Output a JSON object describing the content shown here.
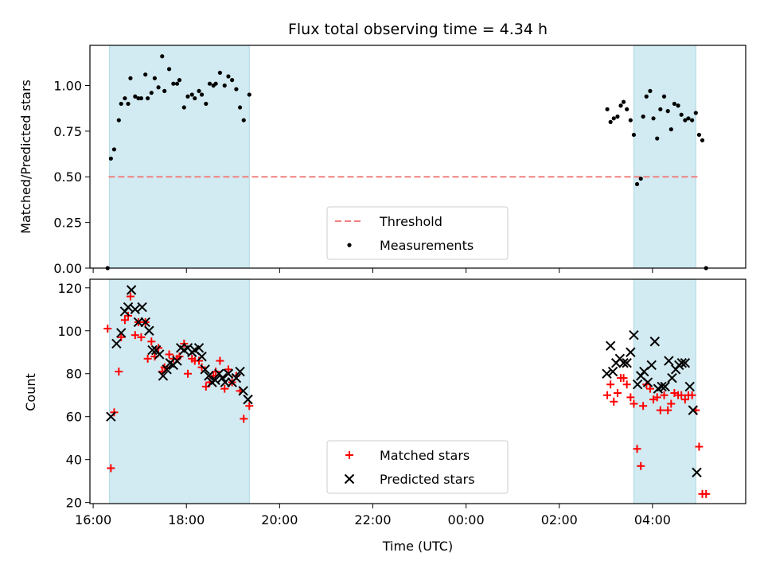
{
  "chart_data": {
    "type": "scatter",
    "title": "Flux total observing time = 4.34 h",
    "xlabel": "Time (UTC)",
    "x_ticks": [
      "16:00",
      "18:00",
      "20:00",
      "22:00",
      "00:00",
      "02:00",
      "04:00"
    ],
    "x_range_hours": [
      15.93,
      30.0
    ],
    "shaded_intervals_hours": [
      [
        16.35,
        19.35
      ],
      [
        27.6,
        28.93
      ]
    ],
    "shade_color": "#add8e6",
    "panels": [
      {
        "ylabel": "Matched/Predicted stars",
        "ylim": [
          0,
          1.22
        ],
        "y_ticks": [
          "0.00",
          "0.25",
          "0.50",
          "0.75",
          "1.00"
        ],
        "y_tick_values": [
          0,
          0.25,
          0.5,
          0.75,
          1.0
        ],
        "threshold": {
          "name": "Threshold",
          "value": 0.5,
          "x_range": [
            16.33,
            29.0
          ],
          "color": "#f08080"
        },
        "legend": [
          "Threshold",
          "Measurements"
        ],
        "series": [
          {
            "name": "Measurements",
            "marker": "dot",
            "color": "#000000",
            "points": [
              [
                16.31,
                0.0
              ],
              [
                16.38,
                0.6
              ],
              [
                16.45,
                0.65
              ],
              [
                16.55,
                0.81
              ],
              [
                16.6,
                0.9
              ],
              [
                16.68,
                0.93
              ],
              [
                16.75,
                0.9
              ],
              [
                16.8,
                1.04
              ],
              [
                16.9,
                0.94
              ],
              [
                16.97,
                0.93
              ],
              [
                17.03,
                0.93
              ],
              [
                17.12,
                1.06
              ],
              [
                17.17,
                0.93
              ],
              [
                17.25,
                0.96
              ],
              [
                17.32,
                1.04
              ],
              [
                17.4,
                0.99
              ],
              [
                17.48,
                1.16
              ],
              [
                17.53,
                0.97
              ],
              [
                17.63,
                1.09
              ],
              [
                17.72,
                1.01
              ],
              [
                17.8,
                1.01
              ],
              [
                17.85,
                1.03
              ],
              [
                17.95,
                0.88
              ],
              [
                18.03,
                0.94
              ],
              [
                18.12,
                0.95
              ],
              [
                18.18,
                0.93
              ],
              [
                18.27,
                0.97
              ],
              [
                18.33,
                0.95
              ],
              [
                18.42,
                0.9
              ],
              [
                18.5,
                1.01
              ],
              [
                18.58,
                1.0
              ],
              [
                18.63,
                1.01
              ],
              [
                18.72,
                1.07
              ],
              [
                18.82,
                1.0
              ],
              [
                18.9,
                1.05
              ],
              [
                18.98,
                1.03
              ],
              [
                19.07,
                0.98
              ],
              [
                19.15,
                0.88
              ],
              [
                19.23,
                0.81
              ],
              [
                19.35,
                0.95
              ],
              [
                27.03,
                0.87
              ],
              [
                27.1,
                0.8
              ],
              [
                27.17,
                0.82
              ],
              [
                27.25,
                0.83
              ],
              [
                27.32,
                0.89
              ],
              [
                27.38,
                0.91
              ],
              [
                27.45,
                0.87
              ],
              [
                27.53,
                0.81
              ],
              [
                27.6,
                0.73
              ],
              [
                27.67,
                0.46
              ],
              [
                27.75,
                0.49
              ],
              [
                27.8,
                0.83
              ],
              [
                27.87,
                0.94
              ],
              [
                27.95,
                0.97
              ],
              [
                28.02,
                0.82
              ],
              [
                28.1,
                0.71
              ],
              [
                28.17,
                0.87
              ],
              [
                28.25,
                0.94
              ],
              [
                28.33,
                0.86
              ],
              [
                28.4,
                0.76
              ],
              [
                28.47,
                0.9
              ],
              [
                28.55,
                0.89
              ],
              [
                28.62,
                0.84
              ],
              [
                28.7,
                0.81
              ],
              [
                28.77,
                0.82
              ],
              [
                28.85,
                0.81
              ],
              [
                28.93,
                0.85
              ],
              [
                29.0,
                0.73
              ],
              [
                29.07,
                0.7
              ],
              [
                29.15,
                0.0
              ]
            ]
          }
        ]
      },
      {
        "ylabel": "Count",
        "ylim": [
          19.5,
          124
        ],
        "y_ticks": [
          "20",
          "40",
          "60",
          "80",
          "100",
          "120"
        ],
        "y_tick_values": [
          20,
          40,
          60,
          80,
          100,
          120
        ],
        "legend": [
          "Matched stars",
          "Predicted stars"
        ],
        "series": [
          {
            "name": "Matched stars",
            "marker": "plus",
            "color": "#ff0000",
            "points": [
              [
                16.31,
                101
              ],
              [
                16.38,
                36
              ],
              [
                16.45,
                62
              ],
              [
                16.55,
                81
              ],
              [
                16.6,
                97
              ],
              [
                16.68,
                105
              ],
              [
                16.75,
                107
              ],
              [
                16.8,
                116
              ],
              [
                16.9,
                98
              ],
              [
                16.97,
                104
              ],
              [
                17.03,
                97
              ],
              [
                17.12,
                104
              ],
              [
                17.17,
                87
              ],
              [
                17.25,
                95
              ],
              [
                17.32,
                88
              ],
              [
                17.4,
                92
              ],
              [
                17.48,
                81
              ],
              [
                17.53,
                83
              ],
              [
                17.63,
                89
              ],
              [
                17.72,
                87
              ],
              [
                17.8,
                87
              ],
              [
                17.85,
                88
              ],
              [
                17.95,
                94
              ],
              [
                18.03,
                80
              ],
              [
                18.12,
                87
              ],
              [
                18.18,
                86
              ],
              [
                18.27,
                86
              ],
              [
                18.33,
                83
              ],
              [
                18.42,
                74
              ],
              [
                18.5,
                76
              ],
              [
                18.58,
                79
              ],
              [
                18.63,
                81
              ],
              [
                18.72,
                86
              ],
              [
                18.82,
                73
              ],
              [
                18.9,
                82
              ],
              [
                18.98,
                76
              ],
              [
                19.07,
                79
              ],
              [
                19.15,
                72
              ],
              [
                19.23,
                59
              ],
              [
                19.35,
                65
              ],
              [
                27.03,
                70
              ],
              [
                27.1,
                75
              ],
              [
                27.17,
                67
              ],
              [
                27.25,
                71
              ],
              [
                27.32,
                78
              ],
              [
                27.38,
                78
              ],
              [
                27.45,
                75
              ],
              [
                27.53,
                69
              ],
              [
                27.6,
                66
              ],
              [
                27.67,
                45
              ],
              [
                27.75,
                37
              ],
              [
                27.8,
                65
              ],
              [
                27.87,
                75
              ],
              [
                27.95,
                73
              ],
              [
                28.02,
                68
              ],
              [
                28.1,
                69
              ],
              [
                28.17,
                63
              ],
              [
                28.25,
                70
              ],
              [
                28.33,
                63
              ],
              [
                28.4,
                66
              ],
              [
                28.47,
                71
              ],
              [
                28.55,
                70
              ],
              [
                28.62,
                70
              ],
              [
                28.7,
                68
              ],
              [
                28.77,
                70
              ],
              [
                28.85,
                70
              ],
              [
                28.93,
                63
              ],
              [
                29.0,
                46
              ],
              [
                29.07,
                24
              ],
              [
                29.15,
                24
              ]
            ]
          },
          {
            "name": "Predicted stars",
            "marker": "x",
            "color": "#000000",
            "points": [
              [
                16.38,
                60
              ],
              [
                16.5,
                94
              ],
              [
                16.6,
                99
              ],
              [
                16.68,
                109
              ],
              [
                16.75,
                111
              ],
              [
                16.82,
                119
              ],
              [
                16.9,
                110
              ],
              [
                16.97,
                104
              ],
              [
                17.05,
                111
              ],
              [
                17.12,
                104
              ],
              [
                17.2,
                100
              ],
              [
                17.27,
                91
              ],
              [
                17.35,
                91
              ],
              [
                17.42,
                89
              ],
              [
                17.5,
                79
              ],
              [
                17.58,
                82
              ],
              [
                17.65,
                85
              ],
              [
                17.72,
                84
              ],
              [
                17.8,
                86
              ],
              [
                17.88,
                92
              ],
              [
                17.95,
                91
              ],
              [
                18.03,
                92
              ],
              [
                18.12,
                90
              ],
              [
                18.18,
                91
              ],
              [
                18.27,
                92
              ],
              [
                18.33,
                88
              ],
              [
                18.4,
                82
              ],
              [
                18.48,
                79
              ],
              [
                18.55,
                76
              ],
              [
                18.62,
                77
              ],
              [
                18.7,
                80
              ],
              [
                18.77,
                78
              ],
              [
                18.83,
                76
              ],
              [
                18.9,
                80
              ],
              [
                18.98,
                76
              ],
              [
                19.07,
                78
              ],
              [
                19.15,
                81
              ],
              [
                19.22,
                72
              ],
              [
                19.32,
                68
              ],
              [
                27.02,
                80
              ],
              [
                27.1,
                93
              ],
              [
                27.15,
                81
              ],
              [
                27.22,
                85
              ],
              [
                27.3,
                87
              ],
              [
                27.38,
                85
              ],
              [
                27.45,
                85
              ],
              [
                27.53,
                90
              ],
              [
                27.6,
                98
              ],
              [
                27.68,
                75
              ],
              [
                27.75,
                79
              ],
              [
                27.82,
                81
              ],
              [
                27.9,
                76
              ],
              [
                27.98,
                84
              ],
              [
                28.05,
                95
              ],
              [
                28.12,
                73
              ],
              [
                28.2,
                74
              ],
              [
                28.27,
                74
              ],
              [
                28.35,
                86
              ],
              [
                28.42,
                78
              ],
              [
                28.5,
                82
              ],
              [
                28.57,
                84
              ],
              [
                28.63,
                85
              ],
              [
                28.7,
                85
              ],
              [
                28.8,
                74
              ],
              [
                28.87,
                63
              ],
              [
                28.95,
                34
              ]
            ]
          }
        ]
      }
    ]
  }
}
